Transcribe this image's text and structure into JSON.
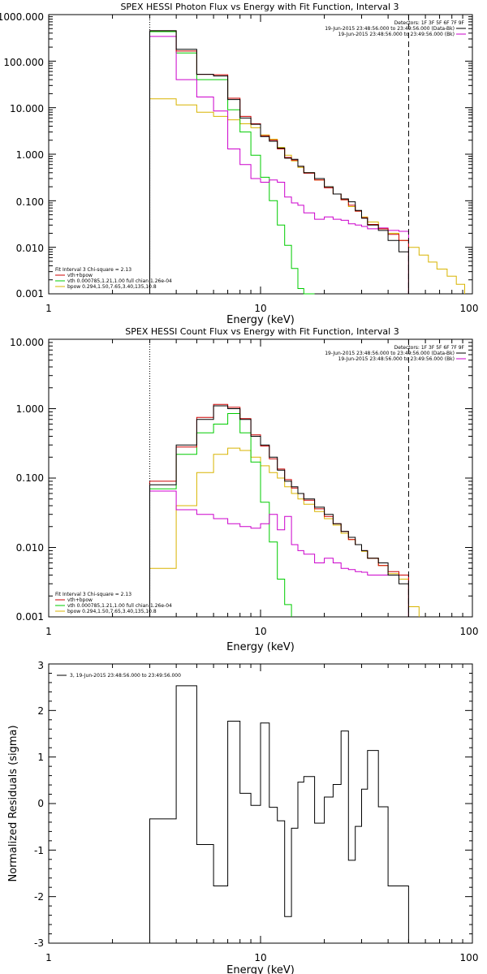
{
  "colors": {
    "total": "#000000",
    "fit_total": "#cc0000",
    "vth": "#00cc00",
    "bpow": "#d8b400",
    "background": "#cc00cc"
  },
  "chart_data": [
    {
      "type": "line",
      "style": "step",
      "title": "SPEX HESSI Photon Flux vs Energy with Fit Function, Interval 3",
      "xlabel": "Energy (keV)",
      "ylabel": "",
      "xscale": "log",
      "yscale": "log",
      "xlim": [
        1,
        100
      ],
      "ylim": [
        0.001,
        1000
      ],
      "x_ticks": [
        "1",
        "10",
        "100"
      ],
      "y_ticks": [
        "0.001",
        "0.010",
        "0.100",
        "1.000",
        "10.000",
        "100.000",
        "1000.000"
      ],
      "vlines": [
        {
          "x": 3,
          "style": "dotted"
        },
        {
          "x": 50,
          "style": "dashed"
        }
      ],
      "legend_topright": [
        {
          "text": "Detectors: 1F 3F 5F 6F 7F 9F",
          "color": "#000000"
        },
        {
          "text": "19-Jun-2015 23:48:56.000 to 23:49:56.000 (Data-Bk)",
          "color": "#000000"
        },
        {
          "text": "19-Jun-2015 23:48:56.000 to 23:49:56.000 (Bk)",
          "color": "#cc00cc"
        }
      ],
      "legend_bottomleft": [
        {
          "text": "Fit Interval 3   Chi-square = 2.13",
          "color": "#000000"
        },
        {
          "text": "vth+bpow",
          "color": "#cc0000"
        },
        {
          "text": "vth 0.000785,1.21,1.00  full chian 1.26e-04",
          "color": "#00cc00"
        },
        {
          "text": "bpow 0.294,1.50,7.65,3.40,135,10.8",
          "color": "#d8b400"
        }
      ],
      "x_edges": [
        3.0,
        4.0,
        5.0,
        6.0,
        7.0,
        8.0,
        9.0,
        10.0,
        11.0,
        12.0,
        13.0,
        14.0,
        15.0,
        16.0,
        18.0,
        20.0,
        22.0,
        24.0,
        26.0,
        28.0,
        30.0,
        32.0,
        36.0,
        40.0,
        45.0,
        50.0
      ],
      "series": [
        {
          "name": "data",
          "color": "#000000",
          "values": [
            450,
            180,
            52,
            48,
            15,
            6.0,
            4.4,
            2.4,
            1.9,
            1.35,
            0.82,
            0.78,
            0.55,
            0.4,
            0.3,
            0.2,
            0.14,
            0.11,
            0.095,
            0.062,
            0.042,
            0.03,
            0.023,
            0.014,
            0.008
          ]
        },
        {
          "name": "vth+bpow",
          "color": "#cc0000",
          "values": [
            450,
            165,
            52,
            51,
            16,
            6.5,
            4.5,
            2.5,
            2.0,
            1.3,
            0.85,
            0.75,
            0.55,
            0.39,
            0.28,
            0.19,
            0.14,
            0.105,
            0.08,
            0.06,
            0.043,
            0.031,
            0.025,
            0.019,
            0.014
          ]
        },
        {
          "name": "vth",
          "color": "#00cc00",
          "values": [
            430,
            150,
            40,
            40,
            9.0,
            3.0,
            0.95,
            0.32,
            0.1,
            0.03,
            0.011,
            0.0035,
            0.0013,
            0.0009
          ]
        },
        {
          "name": "bpow",
          "color": "#d8b400",
          "values": [
            15.5,
            11.5,
            8.0,
            6.5,
            5.5,
            4.5,
            3.7,
            2.6,
            2.1,
            1.4,
            0.95,
            0.72,
            0.52,
            0.4,
            0.28,
            0.2,
            0.14,
            0.105,
            0.075,
            0.06,
            0.045,
            0.035,
            0.025,
            0.02,
            0.014
          ],
          "tail_edges": [
            50.0,
            56.0,
            62.0,
            68.0,
            76.0,
            84.0,
            92.0
          ],
          "tail_values": [
            0.01,
            0.0068,
            0.0048,
            0.0034,
            0.0024,
            0.0016
          ]
        },
        {
          "name": "background",
          "color": "#cc00cc",
          "values": [
            340,
            40,
            17,
            8.5,
            1.3,
            0.6,
            0.3,
            0.25,
            0.28,
            0.25,
            0.12,
            0.09,
            0.08,
            0.055,
            0.04,
            0.045,
            0.04,
            0.038,
            0.032,
            0.03,
            0.028,
            0.025,
            0.026,
            0.023,
            0.022
          ]
        }
      ]
    },
    {
      "type": "line",
      "style": "step",
      "title": "SPEX HESSI Count Flux vs Energy with Fit Function, Interval 3",
      "xlabel": "Energy (keV)",
      "ylabel": "",
      "xscale": "log",
      "yscale": "log",
      "xlim": [
        1,
        100
      ],
      "ylim": [
        0.001,
        10
      ],
      "x_ticks": [
        "1",
        "10",
        "100"
      ],
      "y_ticks": [
        "0.001",
        "0.010",
        "0.100",
        "1.000",
        "10.000"
      ],
      "vlines": [
        {
          "x": 3,
          "style": "dotted"
        },
        {
          "x": 50,
          "style": "dashed"
        }
      ],
      "legend_topright": [
        {
          "text": "Detectors: 1F 3F 5F 6F 7F 9F",
          "color": "#000000"
        },
        {
          "text": "19-Jun-2015 23:48:56.000 to 23:49:56.000 (Data-Bk)",
          "color": "#000000"
        },
        {
          "text": "19-Jun-2015 23:48:56.000 to 23:49:56.000 (Bk)",
          "color": "#cc00cc"
        }
      ],
      "legend_bottomleft": [
        {
          "text": "Fit Interval 3   Chi-square = 2.13",
          "color": "#000000"
        },
        {
          "text": "vth+bpow",
          "color": "#cc0000"
        },
        {
          "text": "vth 0.000785,1.21,1.00  full chian 1.26e-04",
          "color": "#00cc00"
        },
        {
          "text": "bpow 0.294,1.50,7.65,3.40,135,10.8",
          "color": "#d8b400"
        }
      ],
      "x_edges": [
        3.0,
        4.0,
        5.0,
        6.0,
        7.0,
        8.0,
        9.0,
        10.0,
        11.0,
        12.0,
        13.0,
        14.0,
        15.0,
        16.0,
        18.0,
        20.0,
        22.0,
        24.0,
        26.0,
        28.0,
        30.0,
        32.0,
        36.0,
        40.0,
        45.0,
        50.0
      ],
      "series": [
        {
          "name": "data",
          "color": "#000000",
          "values": [
            0.08,
            0.3,
            0.7,
            1.1,
            1.0,
            0.7,
            0.4,
            0.3,
            0.2,
            0.13,
            0.09,
            0.075,
            0.06,
            0.05,
            0.038,
            0.03,
            0.022,
            0.017,
            0.014,
            0.011,
            0.009,
            0.007,
            0.006,
            0.004,
            0.003
          ]
        },
        {
          "name": "vth+bpow",
          "color": "#cc0000",
          "values": [
            0.09,
            0.28,
            0.75,
            1.15,
            1.05,
            0.72,
            0.42,
            0.29,
            0.19,
            0.135,
            0.095,
            0.072,
            0.06,
            0.048,
            0.036,
            0.028,
            0.022,
            0.017,
            0.013,
            0.011,
            0.009,
            0.007,
            0.0055,
            0.0045,
            0.004
          ]
        },
        {
          "name": "vth",
          "color": "#00cc00",
          "values": [
            0.07,
            0.22,
            0.45,
            0.6,
            0.85,
            0.45,
            0.17,
            0.045,
            0.012,
            0.0035,
            0.0015
          ]
        },
        {
          "name": "bpow",
          "color": "#d8b400",
          "values": [
            0.005,
            0.04,
            0.12,
            0.22,
            0.27,
            0.25,
            0.2,
            0.15,
            0.12,
            0.1,
            0.075,
            0.06,
            0.05,
            0.042,
            0.033,
            0.026,
            0.021,
            0.016,
            0.013,
            0.011,
            0.0088,
            0.007,
            0.0055,
            0.0042,
            0.0035
          ],
          "tail_edges": [
            50.0,
            56.0
          ],
          "tail_values": [
            0.0014
          ]
        },
        {
          "name": "background",
          "color": "#cc00cc",
          "values": [
            0.065,
            0.035,
            0.03,
            0.026,
            0.022,
            0.02,
            0.019,
            0.022,
            0.03,
            0.018,
            0.028,
            0.011,
            0.009,
            0.008,
            0.006,
            0.007,
            0.006,
            0.005,
            0.0048,
            0.0045,
            0.0044,
            0.004,
            0.004,
            0.004,
            0.004
          ]
        }
      ]
    },
    {
      "type": "line",
      "style": "step",
      "title": "",
      "xlabel": "Energy (keV)",
      "ylabel": "Normalized Residuals (sigma)",
      "xscale": "log",
      "yscale": "linear",
      "xlim": [
        1,
        100
      ],
      "ylim": [
        -3,
        3
      ],
      "x_ticks": [
        "1",
        "10",
        "100"
      ],
      "y_ticks": [
        "-3",
        "-2",
        "-1",
        "0",
        "1",
        "2",
        "3"
      ],
      "legend_topleft": [
        {
          "text": "3, 19-Jun-2015 23:48:56.000 to 23:49:56.000",
          "color": "#000000"
        }
      ],
      "x_edges": [
        3.0,
        4.0,
        5.0,
        6.0,
        7.0,
        8.0,
        9.0,
        10.0,
        11.0,
        12.0,
        13.0,
        14.0,
        15.0,
        16.0,
        18.0,
        20.0,
        22.0,
        24.0,
        26.0,
        28.0,
        30.0,
        32.0,
        36.0,
        40.0,
        45.0,
        50.0
      ],
      "series": [
        {
          "name": "",
          "color": "#000000",
          "values": [
            -0.33,
            2.53,
            -0.88,
            -1.77,
            1.77,
            0.22,
            -0.04,
            1.73,
            -0.08,
            -0.37,
            -2.43,
            -0.53,
            0.46,
            0.58,
            -0.42,
            0.14,
            0.41,
            1.56,
            -1.22,
            -0.49,
            0.31,
            1.14,
            -0.07,
            -1.77,
            -1.77
          ]
        }
      ]
    }
  ]
}
